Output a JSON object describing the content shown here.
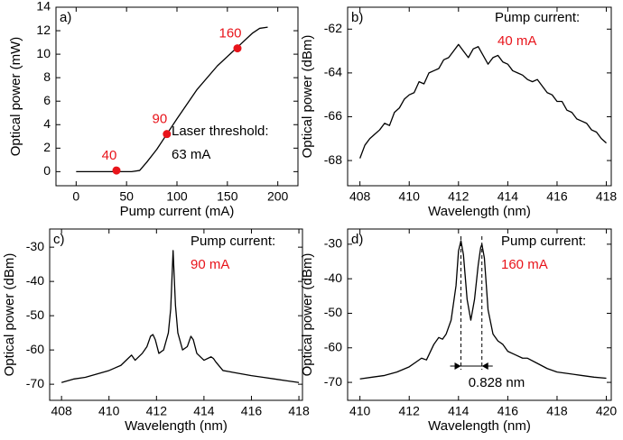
{
  "chart_data": [
    {
      "type": "line",
      "panel_label": "a)",
      "xlabel": "Pump current (mA)",
      "ylabel": "Optical power (mW)",
      "xlim": [
        -20,
        220
      ],
      "xticks": [
        0,
        50,
        100,
        150,
        200
      ],
      "ylim": [
        -1.2,
        14
      ],
      "yticks": [
        0,
        2,
        4,
        6,
        8,
        10,
        12,
        14
      ],
      "series": [
        {
          "color": "#000000",
          "x": [
            0,
            55,
            63,
            70,
            80,
            90,
            100,
            120,
            140,
            160,
            175,
            182,
            190
          ],
          "values": [
            0,
            0,
            0.1,
            0.8,
            1.9,
            3.2,
            4.5,
            7.0,
            9.0,
            10.6,
            11.8,
            12.2,
            12.3
          ]
        }
      ],
      "points": {
        "color": "#e8141b",
        "x": [
          40,
          90,
          160
        ],
        "y": [
          0.1,
          3.2,
          10.5
        ]
      },
      "annotations": [
        {
          "text": "Laser threshold:",
          "color": "#000000"
        },
        {
          "text": "63 mA",
          "color": "#000000"
        }
      ]
    },
    {
      "type": "line",
      "panel_label": "b)",
      "xlabel": "Wavelength (nm)",
      "ylabel": "Optical power (dBm)",
      "xlim": [
        407.5,
        418.2
      ],
      "xticks": [
        408,
        410,
        412,
        414,
        416,
        418
      ],
      "ylim": [
        -69.15,
        -61
      ],
      "yticks": [
        -62,
        -64,
        -66,
        -68
      ],
      "series": [
        {
          "color": "#000000",
          "x": [
            408.0,
            408.2,
            408.4,
            408.6,
            408.8,
            409.0,
            409.2,
            409.4,
            409.6,
            409.8,
            410.0,
            410.2,
            410.4,
            410.6,
            410.8,
            411.0,
            411.2,
            411.4,
            411.6,
            411.8,
            412.0,
            412.2,
            412.4,
            412.6,
            412.8,
            413.0,
            413.2,
            413.4,
            413.6,
            413.8,
            414.0,
            414.2,
            414.4,
            414.6,
            414.8,
            415.0,
            415.2,
            415.4,
            415.6,
            415.8,
            416.0,
            416.2,
            416.4,
            416.6,
            416.8,
            417.0,
            417.2,
            417.4,
            417.6,
            417.8,
            418.0
          ],
          "values": [
            -67.9,
            -67.3,
            -67.0,
            -66.8,
            -66.6,
            -66.3,
            -66.4,
            -65.8,
            -65.6,
            -65.2,
            -65.0,
            -64.9,
            -64.4,
            -64.5,
            -64.0,
            -63.9,
            -63.8,
            -63.4,
            -63.3,
            -63.0,
            -62.7,
            -63.0,
            -63.3,
            -62.9,
            -62.8,
            -63.2,
            -63.6,
            -63.3,
            -63.2,
            -63.5,
            -63.6,
            -63.9,
            -64.0,
            -64.1,
            -64.3,
            -64.4,
            -64.3,
            -64.6,
            -64.9,
            -65.0,
            -65.3,
            -65.3,
            -65.7,
            -65.8,
            -66.1,
            -66.2,
            -66.3,
            -66.6,
            -66.7,
            -67.0,
            -67.2
          ]
        }
      ],
      "annotations": [
        {
          "text": "Pump current:",
          "color": "#000000"
        },
        {
          "text": "40 mA",
          "color": "#e8141b"
        }
      ]
    },
    {
      "type": "line",
      "panel_label": "c)",
      "xlabel": "Wavelength (nm)",
      "ylabel": "Optical power (dBm)",
      "xlim": [
        407.5,
        418.15
      ],
      "xticks": [
        408,
        410,
        412,
        414,
        416,
        418
      ],
      "ylim": [
        -74.7,
        -24.7
      ],
      "yticks": [
        -30,
        -40,
        -50,
        -60,
        -70
      ],
      "series": [
        {
          "color": "#000000",
          "x": [
            408,
            408.5,
            409,
            409.5,
            410,
            410.5,
            410.8,
            410.95,
            411.1,
            411.4,
            411.6,
            411.75,
            411.85,
            411.95,
            412.1,
            412.3,
            412.5,
            412.6,
            412.7,
            412.8,
            412.9,
            413.1,
            413.3,
            413.45,
            413.55,
            413.7,
            414.0,
            414.3,
            414.4,
            414.5,
            414.8,
            415.2,
            415.6,
            416,
            416.5,
            417,
            417.5,
            418
          ],
          "values": [
            -69.5,
            -68.5,
            -68,
            -67,
            -66,
            -64.5,
            -62.5,
            -61.5,
            -63,
            -61,
            -59,
            -56,
            -55.5,
            -57,
            -61,
            -60,
            -55,
            -48,
            -31,
            -47,
            -55,
            -60,
            -59,
            -56,
            -57,
            -61,
            -63,
            -62,
            -62.5,
            -63.5,
            -66,
            -66.5,
            -67,
            -67.5,
            -68,
            -68.5,
            -69,
            -69.5
          ]
        }
      ],
      "annotations": [
        {
          "text": "Pump current:",
          "color": "#000000"
        },
        {
          "text": "90 mA",
          "color": "#e8141b"
        }
      ]
    },
    {
      "type": "line",
      "panel_label": "d)",
      "xlabel": "Wavelength (nm)",
      "ylabel": "Optical power (dBm)",
      "xlim": [
        409.5,
        420.2
      ],
      "xticks": [
        410,
        412,
        414,
        416,
        418,
        420
      ],
      "ylim": [
        -75.2,
        -25.6
      ],
      "yticks": [
        -30,
        -40,
        -50,
        -60,
        -70
      ],
      "series": [
        {
          "color": "#000000",
          "x": [
            410,
            410.5,
            411,
            411.5,
            412,
            412.3,
            412.5,
            412.7,
            413,
            413.2,
            413.35,
            413.5,
            413.7,
            413.9,
            414.0,
            414.1,
            414.2,
            414.35,
            414.5,
            414.65,
            414.8,
            414.9,
            414.95,
            415.05,
            415.2,
            415.4,
            415.6,
            415.8,
            416,
            416.3,
            416.6,
            416.8,
            417.2,
            417.6,
            418,
            418.5,
            419,
            419.5,
            420
          ],
          "values": [
            -69,
            -68.5,
            -68,
            -67,
            -65.5,
            -64,
            -63,
            -63.5,
            -59,
            -57,
            -57.5,
            -56,
            -52,
            -42,
            -32,
            -29,
            -33,
            -46,
            -52,
            -46,
            -36,
            -31,
            -30,
            -34,
            -49,
            -56,
            -58,
            -59,
            -61,
            -62,
            -63,
            -63,
            -64.5,
            -66,
            -67,
            -67.5,
            -68,
            -68.5,
            -68.8
          ]
        }
      ],
      "peak_lines": [
        414.1,
        414.95
      ],
      "annotations": [
        {
          "text": "Pump current:",
          "color": "#000000"
        },
        {
          "text": "160 mA",
          "color": "#e8141b"
        },
        {
          "text": "0.828 nm",
          "color": "#000000"
        }
      ]
    }
  ]
}
